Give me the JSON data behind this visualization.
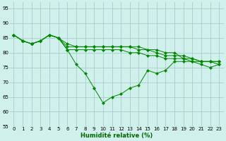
{
  "title": "",
  "xlabel": "Humidité relative (%)",
  "ylabel": "",
  "background_color": "#cff0eb",
  "grid_color": "#aacccc",
  "line_color": "#008800",
  "ylim": [
    55,
    97
  ],
  "xlim": [
    -0.5,
    23.5
  ],
  "yticks": [
    55,
    60,
    65,
    70,
    75,
    80,
    85,
    90,
    95
  ],
  "xticks": [
    0,
    1,
    2,
    3,
    4,
    5,
    6,
    7,
    8,
    9,
    10,
    11,
    12,
    13,
    14,
    15,
    16,
    17,
    18,
    19,
    20,
    21,
    22,
    23
  ],
  "series": [
    [
      86,
      84,
      83,
      84,
      86,
      85,
      81,
      76,
      73,
      68,
      63,
      65,
      66,
      68,
      69,
      74,
      73,
      74,
      77,
      77,
      77,
      76,
      75,
      76
    ],
    [
      86,
      84,
      83,
      84,
      86,
      85,
      81,
      81,
      81,
      81,
      81,
      81,
      81,
      80,
      80,
      79,
      79,
      78,
      78,
      78,
      77,
      77,
      77,
      76
    ],
    [
      86,
      84,
      83,
      84,
      86,
      85,
      82,
      82,
      82,
      82,
      82,
      82,
      82,
      82,
      81,
      81,
      80,
      79,
      79,
      79,
      78,
      77,
      77,
      77
    ],
    [
      86,
      84,
      83,
      84,
      86,
      85,
      83,
      82,
      82,
      82,
      82,
      82,
      82,
      82,
      82,
      81,
      81,
      80,
      80,
      78,
      78,
      77,
      77,
      77
    ]
  ],
  "tick_fontsize": 5.0,
  "xlabel_fontsize": 6.0,
  "xlabel_color": "#006600",
  "linewidth": 0.7,
  "markersize": 2.2
}
